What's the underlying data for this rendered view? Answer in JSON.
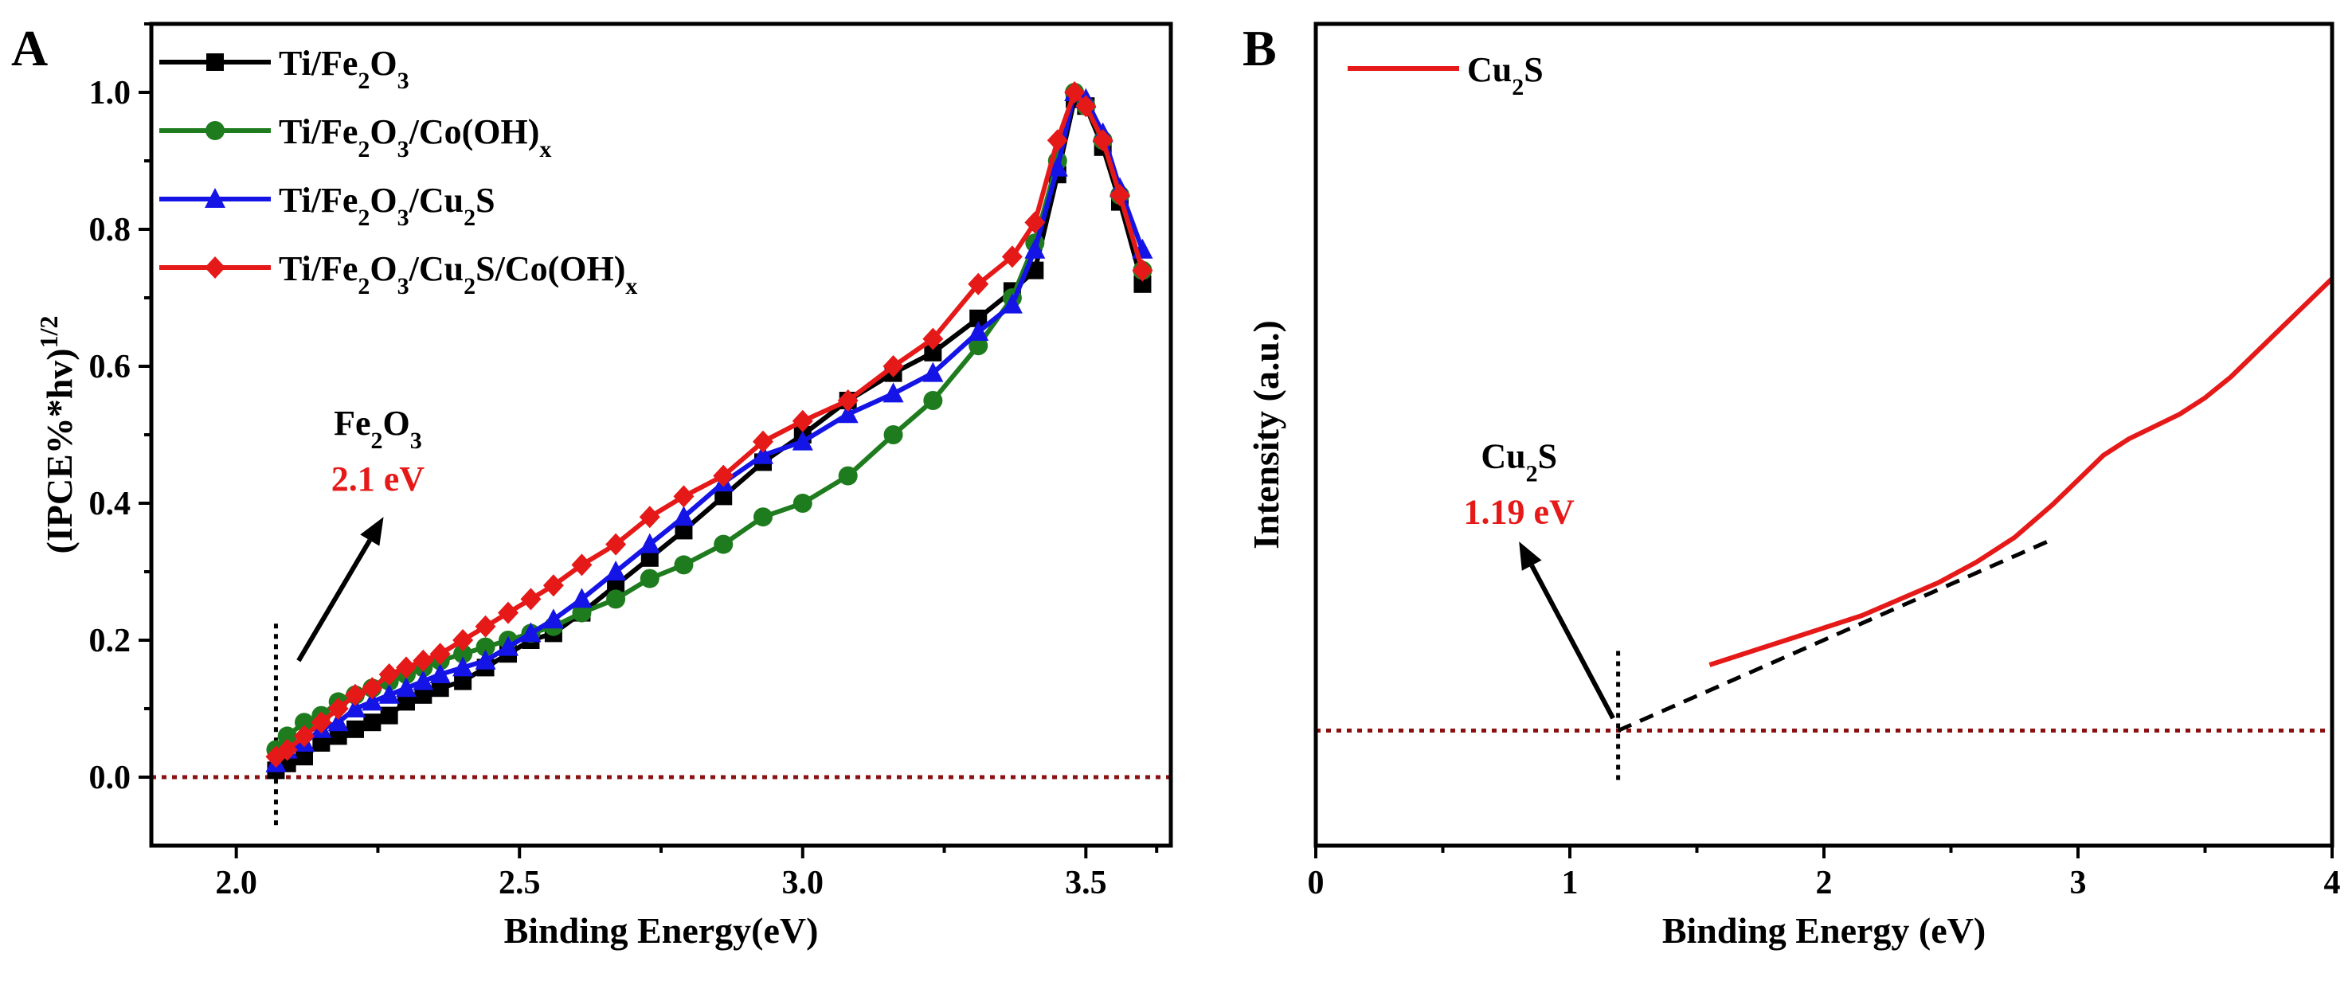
{
  "chart_data": [
    {
      "type": "line",
      "panel_label": "A",
      "xlabel": "Binding Energy(eV)",
      "ylabel": "(IPCE%*hν)1/2",
      "ylabel_parts": {
        "main": "(IPCE%*hv)",
        "sup": "1/2"
      },
      "xlim": [
        1.85,
        3.65
      ],
      "ylim": [
        -0.1,
        1.1
      ],
      "xticks": [
        "2.0",
        "2.5",
        "3.0",
        "3.5"
      ],
      "xtick_values": [
        2.0,
        2.5,
        3.0,
        3.5
      ],
      "yticks": [
        "0.0",
        "0.2",
        "0.4",
        "0.6",
        "0.8",
        "1.0"
      ],
      "ytick_values": [
        0.0,
        0.2,
        0.4,
        0.6,
        0.8,
        1.0
      ],
      "legend": "top-left",
      "x": [
        2.07,
        2.09,
        2.12,
        2.15,
        2.18,
        2.21,
        2.24,
        2.27,
        2.3,
        2.33,
        2.36,
        2.4,
        2.44,
        2.48,
        2.52,
        2.56,
        2.61,
        2.67,
        2.73,
        2.79,
        2.86,
        2.93,
        3.0,
        3.08,
        3.16,
        3.23,
        3.31,
        3.37,
        3.41,
        3.45,
        3.48,
        3.5,
        3.53,
        3.56,
        3.6
      ],
      "series": [
        {
          "name": "Ti/Fe2O3",
          "name_parts": [
            "Ti/Fe",
            "2",
            "O",
            "3",
            ""
          ],
          "color": "#000000",
          "marker": "square",
          "values": [
            0.01,
            0.02,
            0.03,
            0.05,
            0.06,
            0.07,
            0.08,
            0.09,
            0.11,
            0.12,
            0.13,
            0.14,
            0.16,
            0.18,
            0.2,
            0.21,
            0.24,
            0.28,
            0.32,
            0.36,
            0.41,
            0.46,
            0.5,
            0.55,
            0.59,
            0.62,
            0.67,
            0.71,
            0.74,
            0.88,
            0.99,
            0.98,
            0.92,
            0.84,
            0.72
          ]
        },
        {
          "name": "Ti/Fe2O3/Co(OH)x",
          "name_parts": [
            "Ti/Fe",
            "2",
            "O",
            "3",
            "/Co(OH)",
            "x"
          ],
          "color": "#1e7c1e",
          "marker": "circle",
          "values": [
            0.04,
            0.06,
            0.08,
            0.09,
            0.11,
            0.12,
            0.13,
            0.14,
            0.15,
            0.16,
            0.17,
            0.18,
            0.19,
            0.2,
            0.21,
            0.22,
            0.24,
            0.26,
            0.29,
            0.31,
            0.34,
            0.38,
            0.4,
            0.44,
            0.5,
            0.55,
            0.63,
            0.7,
            0.78,
            0.9,
            1.0,
            0.98,
            0.93,
            0.85,
            0.74
          ]
        },
        {
          "name": "Ti/Fe2O3/Cu2S",
          "name_parts": [
            "Ti/Fe",
            "2",
            "O",
            "3",
            "/Cu",
            "2",
            "S"
          ],
          "color": "#1414e6",
          "marker": "triangle",
          "values": [
            0.02,
            0.04,
            0.05,
            0.07,
            0.08,
            0.1,
            0.11,
            0.12,
            0.13,
            0.14,
            0.15,
            0.16,
            0.17,
            0.19,
            0.21,
            0.23,
            0.26,
            0.3,
            0.34,
            0.38,
            0.43,
            0.47,
            0.49,
            0.53,
            0.56,
            0.59,
            0.65,
            0.69,
            0.77,
            0.89,
            1.0,
            0.99,
            0.94,
            0.86,
            0.77
          ]
        },
        {
          "name": "Ti/Fe2O3/Cu2S/Co(OH)x",
          "name_parts": [
            "Ti/Fe",
            "2",
            "O",
            "3",
            "/Cu",
            "2",
            "S/Co(OH)",
            "x"
          ],
          "color": "#e61919",
          "marker": "diamond",
          "values": [
            0.03,
            0.04,
            0.06,
            0.08,
            0.1,
            0.12,
            0.13,
            0.15,
            0.16,
            0.17,
            0.18,
            0.2,
            0.22,
            0.24,
            0.26,
            0.28,
            0.31,
            0.34,
            0.38,
            0.41,
            0.44,
            0.49,
            0.52,
            0.55,
            0.6,
            0.64,
            0.72,
            0.76,
            0.81,
            0.93,
            1.0,
            0.98,
            0.93,
            0.85,
            0.74
          ]
        }
      ],
      "reference_lines": [
        {
          "orientation": "horizontal",
          "y": 0.0,
          "color": "#8b1010",
          "style": "dotted"
        },
        {
          "orientation": "vertical",
          "x": 2.07,
          "y_range": [
            -0.07,
            0.23
          ],
          "color": "#000000",
          "style": "dotted"
        }
      ],
      "annotation": {
        "material_parts": [
          "Fe",
          "2",
          "O",
          "3"
        ],
        "value": "2.1 eV",
        "value_color": "#e61919",
        "arrow_from": [
          2.11,
          0.17
        ],
        "arrow_to": [
          2.26,
          0.38
        ],
        "label_at": [
          2.25,
          0.5
        ]
      }
    },
    {
      "type": "line",
      "panel_label": "B",
      "xlabel": "Binding Energy (eV)",
      "ylabel": "Intensity (a.u.)",
      "xlim": [
        0,
        4
      ],
      "ylim": [
        0,
        1
      ],
      "xticks": [
        "0",
        "1",
        "2",
        "3",
        "4"
      ],
      "xtick_values": [
        0,
        1,
        2,
        3,
        4
      ],
      "show_yticks": false,
      "legend": "top-left",
      "series": [
        {
          "name": "Cu2S",
          "name_parts": [
            "Cu",
            "2",
            "S"
          ],
          "color": "#e61919",
          "marker": "none",
          "x": [
            1.55,
            1.7,
            1.85,
            2.0,
            2.15,
            2.3,
            2.45,
            2.6,
            2.75,
            2.9,
            3.0,
            3.1,
            3.2,
            3.3,
            3.4,
            3.5,
            3.6,
            3.7,
            3.8,
            3.9,
            4.0
          ],
          "values": [
            0.22,
            0.235,
            0.25,
            0.265,
            0.28,
            0.3,
            0.32,
            0.345,
            0.375,
            0.415,
            0.445,
            0.475,
            0.495,
            0.51,
            0.525,
            0.545,
            0.57,
            0.6,
            0.63,
            0.66,
            0.69
          ]
        }
      ],
      "reference_lines": [
        {
          "orientation": "horizontal",
          "y": 0.14,
          "color": "#8b1010",
          "style": "dotted"
        },
        {
          "orientation": "vertical",
          "x": 1.19,
          "y_range": [
            0.08,
            0.24
          ],
          "color": "#000000",
          "style": "dotted"
        },
        {
          "orientation": "tangent",
          "points": [
            [
              1.19,
              0.14
            ],
            [
              2.88,
              0.37
            ]
          ],
          "color": "#000000",
          "style": "dashed"
        }
      ],
      "annotation": {
        "material_parts": [
          "Cu",
          "2",
          "S"
        ],
        "value": "1.19 eV",
        "value_color": "#e61919",
        "arrow_from": [
          1.17,
          0.155
        ],
        "arrow_to": [
          0.8,
          0.37
        ],
        "label_at": [
          0.8,
          0.46
        ]
      }
    }
  ]
}
